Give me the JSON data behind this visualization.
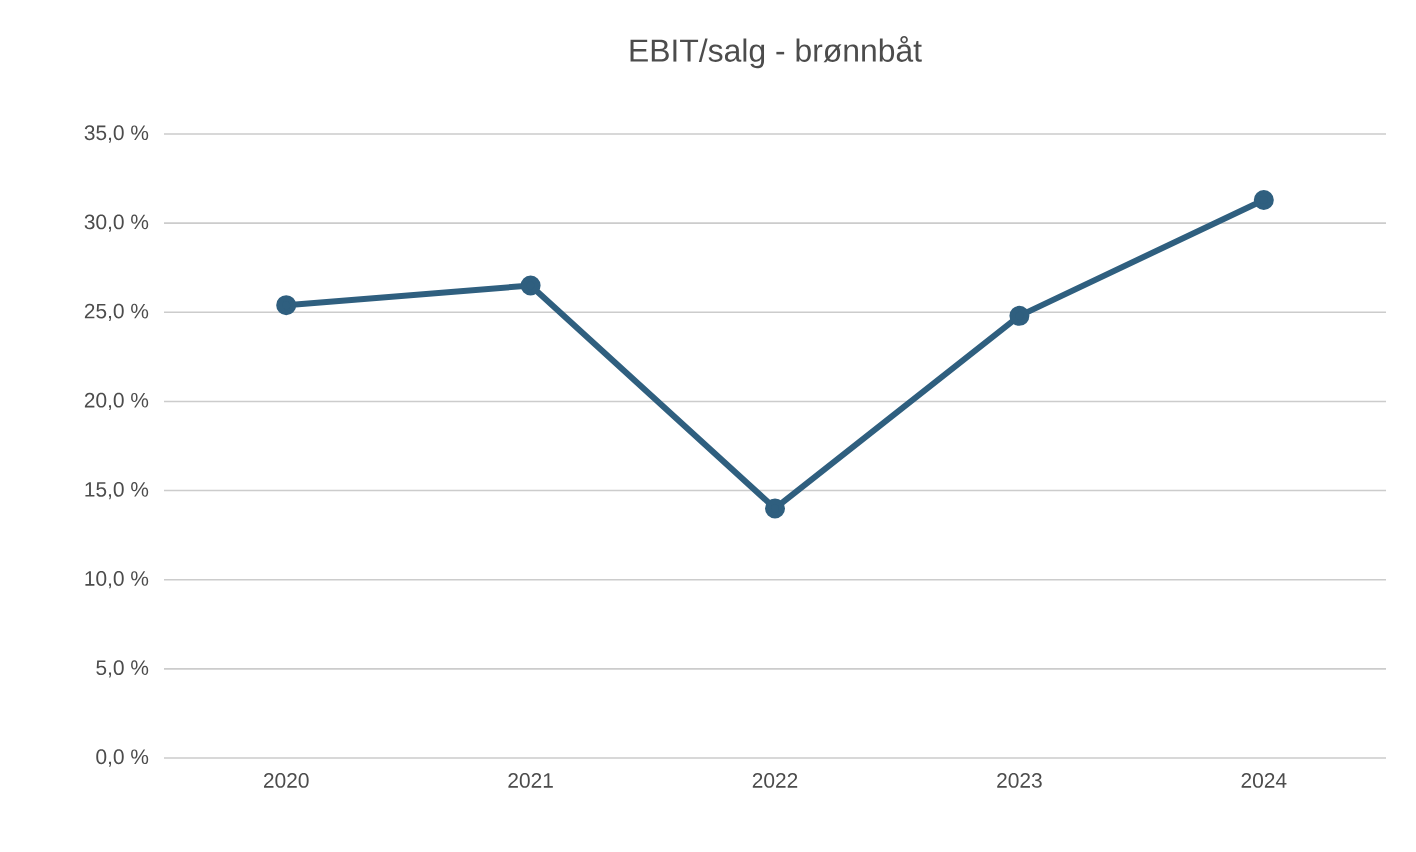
{
  "chart_data": {
    "type": "line",
    "title": "EBIT/salg - brønnbåt",
    "categories": [
      "2020",
      "2021",
      "2022",
      "2023",
      "2024"
    ],
    "series": [
      {
        "color": "#2f5f7f",
        "values": [
          25.4,
          26.5,
          14.0,
          24.8,
          31.3
        ]
      }
    ],
    "ylim": [
      0,
      35
    ],
    "yticks": [
      {
        "value": 0,
        "label": "0,0 %"
      },
      {
        "value": 5,
        "label": "5,0 %"
      },
      {
        "value": 10,
        "label": "10,0 %"
      },
      {
        "value": 15,
        "label": "15,0 %"
      },
      {
        "value": 20,
        "label": "20,0 %"
      },
      {
        "value": 25,
        "label": "25,0 %"
      },
      {
        "value": 30,
        "label": "30,0 %"
      },
      {
        "value": 35,
        "label": "35,0 %"
      }
    ],
    "grid": "y",
    "marker": "circle",
    "line_style": "solid"
  }
}
